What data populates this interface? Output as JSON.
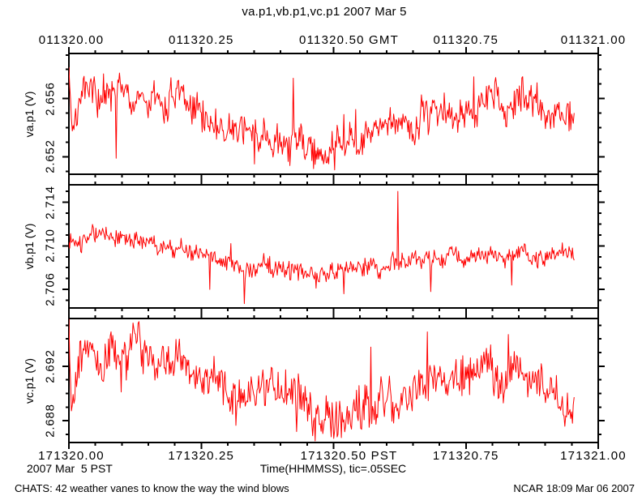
{
  "chart_data": {
    "type": "line",
    "title": "va.p1,vb.p1,vc.p1 2007 Mar 5",
    "trace_color": "#ff0000",
    "axis_color": "#000000",
    "background": "#ffffff",
    "x_axis": {
      "range_sec": [
        0,
        1
      ],
      "major_tick_step_sec": 0.25,
      "minor_tick_step_sec": 0.05,
      "top_tick_labels": [
        "011320.00",
        "011320.25",
        "011320.50 GMT",
        "011320.75",
        "011321.00"
      ],
      "bottom_tick_labels": [
        "171320.00",
        "171320.25",
        "171320.50 PST",
        "171320.75",
        "171321.00"
      ],
      "caption": "Time(HHMMSS), tic=.05SEC",
      "date_label": "2007 Mar  5 PST"
    },
    "panels": [
      {
        "name": "va.p1",
        "ylabel": "va.p1 (V)",
        "ylim": [
          2.6508,
          2.6591
        ],
        "yticks_major": [
          2.656,
          2.652
        ],
        "ytick_labels": [
          "2.656",
          "2.652"
        ],
        "ytick_minor_step": 0.001,
        "t_end": 0.9545,
        "n_points": 600,
        "seed": 7,
        "noise_amp": 0.0008,
        "trend": [
          [
            0,
            2.6585
          ],
          [
            0.006,
            2.6541
          ],
          [
            0.02,
            2.6563
          ],
          [
            0.08,
            2.6566
          ],
          [
            0.14,
            2.6562
          ],
          [
            0.2,
            2.6559
          ],
          [
            0.25,
            2.6554
          ],
          [
            0.3,
            2.6539
          ],
          [
            0.36,
            2.6531
          ],
          [
            0.42,
            2.653
          ],
          [
            0.47,
            2.6528
          ],
          [
            0.52,
            2.6531
          ],
          [
            0.58,
            2.6539
          ],
          [
            0.64,
            2.6547
          ],
          [
            0.7,
            2.6553
          ],
          [
            0.78,
            2.6556
          ],
          [
            0.86,
            2.6556
          ],
          [
            0.92,
            2.6552
          ],
          [
            0.9545,
            2.6551
          ]
        ],
        "spikes": [
          [
            0.066,
            2.6577
          ],
          [
            0.089,
            2.6519
          ],
          [
            0.35,
            2.6515
          ],
          [
            0.424,
            2.6574
          ],
          [
            0.502,
            2.6511
          ],
          [
            0.765,
            2.6575
          ]
        ]
      },
      {
        "name": "vb.p1",
        "ylabel": "vb.p1 (V)",
        "ylim": [
          2.7043,
          2.7156
        ],
        "yticks_major": [
          2.714,
          2.71,
          2.706
        ],
        "ytick_labels": [
          "2.714",
          "2.710",
          "2.706"
        ],
        "ytick_minor_step": 0.001,
        "t_end": 0.9545,
        "n_points": 600,
        "seed": 13,
        "noise_amp": 0.00055,
        "trend": [
          [
            0,
            2.7108
          ],
          [
            0.04,
            2.711
          ],
          [
            0.1,
            2.7106
          ],
          [
            0.16,
            2.7102
          ],
          [
            0.22,
            2.7094
          ],
          [
            0.28,
            2.7087
          ],
          [
            0.34,
            2.7081
          ],
          [
            0.42,
            2.7077
          ],
          [
            0.5,
            2.7077
          ],
          [
            0.56,
            2.7083
          ],
          [
            0.62,
            2.7086
          ],
          [
            0.68,
            2.7089
          ],
          [
            0.76,
            2.7091
          ],
          [
            0.84,
            2.7091
          ],
          [
            0.92,
            2.7093
          ],
          [
            0.9545,
            2.7093
          ]
        ],
        "spikes": [
          [
            0.266,
            2.706
          ],
          [
            0.332,
            2.7047
          ],
          [
            0.52,
            2.7056
          ],
          [
            0.622,
            2.715
          ],
          [
            0.684,
            2.7058
          ],
          [
            0.836,
            2.7064
          ]
        ]
      },
      {
        "name": "vc.p1",
        "ylabel": "vc.p1 (V)",
        "ylim": [
          2.6864,
          2.6955
        ],
        "yticks_major": [
          2.692,
          2.688
        ],
        "ytick_labels": [
          "2.692",
          "2.688"
        ],
        "ytick_minor_step": 0.001,
        "t_end": 0.9545,
        "n_points": 600,
        "seed": 42,
        "noise_amp": 0.0011,
        "trend": [
          [
            0,
            2.695
          ],
          [
            0.005,
            2.6889
          ],
          [
            0.02,
            2.6928
          ],
          [
            0.1,
            2.6926
          ],
          [
            0.18,
            2.6922
          ],
          [
            0.26,
            2.6913
          ],
          [
            0.34,
            2.6903
          ],
          [
            0.42,
            2.6893
          ],
          [
            0.48,
            2.6888
          ],
          [
            0.54,
            2.6887
          ],
          [
            0.6,
            2.6897
          ],
          [
            0.68,
            2.6908
          ],
          [
            0.76,
            2.6914
          ],
          [
            0.84,
            2.6915
          ],
          [
            0.9,
            2.6908
          ],
          [
            0.928,
            2.6898
          ],
          [
            0.942,
            2.6881
          ],
          [
            0.9545,
            2.6897
          ]
        ],
        "spikes": [
          [
            0.43,
            2.6872
          ],
          [
            0.46,
            2.6869
          ],
          [
            0.5,
            2.6867
          ],
          [
            0.571,
            2.6934
          ]
        ]
      }
    ],
    "footer_left": "CHATS: 42 weather vanes to know the way the wind blows",
    "footer_right": "NCAR 18:09 Mar 06 2007"
  }
}
